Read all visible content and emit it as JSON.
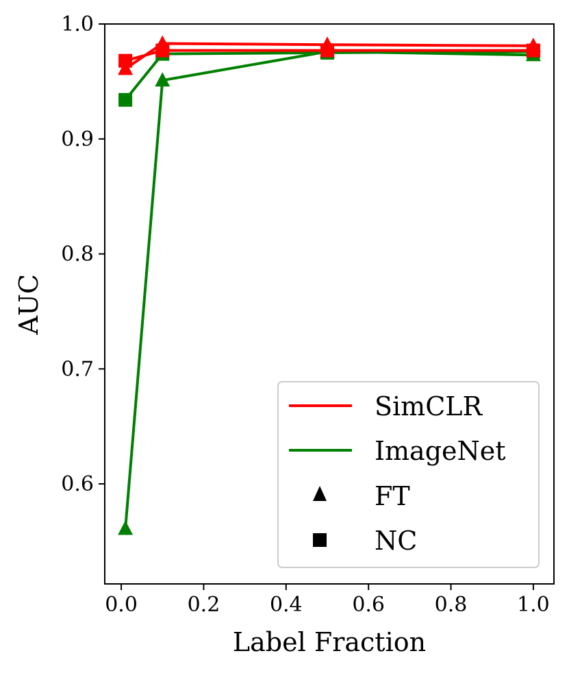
{
  "chart_data": {
    "type": "line",
    "title": "",
    "xlabel": "Label Fraction",
    "ylabel": "AUC",
    "xlim": [
      -0.04,
      1.05
    ],
    "ylim": [
      0.513,
      1.0
    ],
    "xticks": [
      0.0,
      0.2,
      0.4,
      0.6,
      0.8,
      1.0
    ],
    "xtick_labels": [
      "0.0",
      "0.2",
      "0.4",
      "0.6",
      "0.8",
      "1.0"
    ],
    "yticks": [
      0.6,
      0.7,
      0.8,
      0.9,
      1.0
    ],
    "ytick_labels": [
      "0.6",
      "0.7",
      "0.8",
      "0.9",
      "1.0"
    ],
    "grid": false,
    "legend_position": "lower-right",
    "legend": [
      {
        "label": "SimCLR",
        "kind": "line",
        "color": "#ff0000"
      },
      {
        "label": "ImageNet",
        "kind": "line",
        "color": "#008000"
      },
      {
        "label": "FT",
        "kind": "marker",
        "marker": "triangle",
        "color": "#000000"
      },
      {
        "label": "NC",
        "kind": "marker",
        "marker": "square",
        "color": "#000000"
      }
    ],
    "x": [
      0.01,
      0.1,
      0.5,
      1.0
    ],
    "series": [
      {
        "group": "SimCLR",
        "method": "FT",
        "color": "#ff0000",
        "marker": "triangle",
        "values": [
          0.961,
          0.983,
          0.982,
          0.981
        ]
      },
      {
        "group": "SimCLR",
        "method": "NC",
        "color": "#ff0000",
        "marker": "square",
        "values": [
          0.968,
          0.977,
          0.977,
          0.977
        ]
      },
      {
        "group": "ImageNet",
        "method": "FT",
        "color": "#008000",
        "marker": "triangle",
        "values": [
          0.561,
          0.951,
          0.976,
          0.973
        ]
      },
      {
        "group": "ImageNet",
        "method": "NC",
        "color": "#008000",
        "marker": "square",
        "values": [
          0.934,
          0.974,
          0.975,
          0.976
        ]
      }
    ]
  }
}
